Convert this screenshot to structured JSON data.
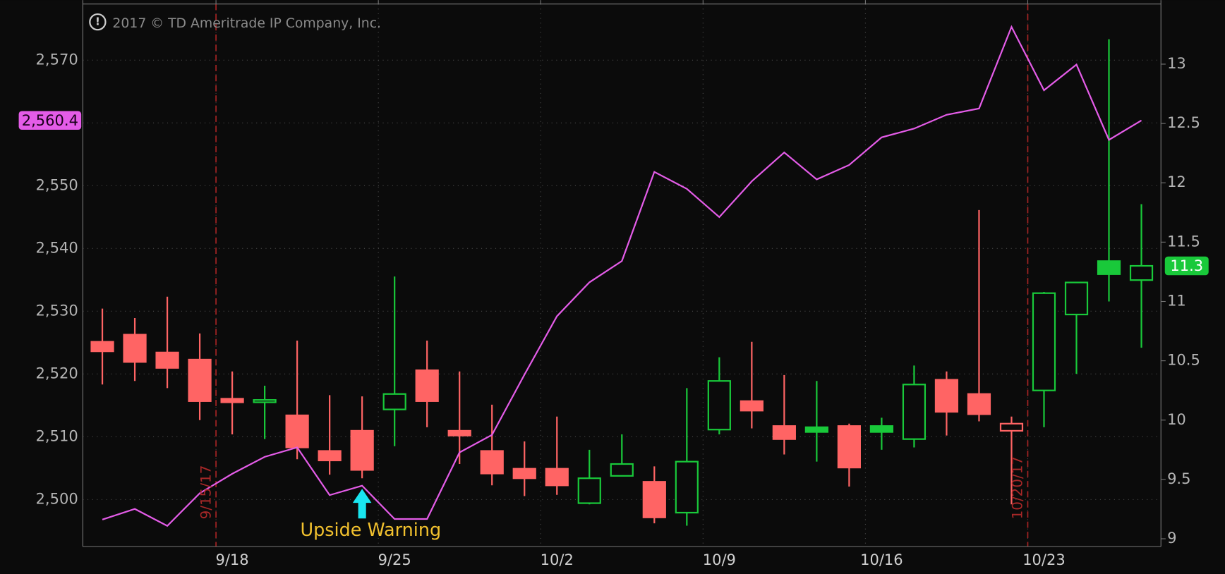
{
  "chart_data": {
    "type": "candlestick",
    "annotations": {
      "copyright": "2017 © TD Ameritrade IP Company, Inc.",
      "signal": {
        "text": "Upside Warning",
        "index": 8
      }
    },
    "event_lines": [
      {
        "label": "9/15/17",
        "index": 3
      },
      {
        "label": "10/20/17",
        "index": 28
      }
    ],
    "categories": [
      null,
      null,
      null,
      null,
      "9/18",
      null,
      null,
      null,
      null,
      "9/25",
      null,
      null,
      null,
      null,
      "10/2",
      null,
      null,
      null,
      null,
      "10/9",
      null,
      null,
      null,
      null,
      "10/16",
      null,
      null,
      null,
      null,
      "10/23",
      null,
      null,
      null
    ],
    "ylim": [
      2492.5,
      2578.95
    ],
    "yticks": [
      {
        "value": 2500,
        "label": "2,500"
      },
      {
        "value": 2510,
        "label": "2,510"
      },
      {
        "value": 2520,
        "label": "2,520"
      },
      {
        "value": 2530,
        "label": "2,530"
      },
      {
        "value": 2540,
        "label": "2,540"
      },
      {
        "value": 2550,
        "label": "2,550"
      },
      {
        "value": 2560,
        "label": "2,560"
      },
      {
        "value": 2570,
        "label": "2,570"
      }
    ],
    "y2lim": [
      8.934,
      13.507
    ],
    "y2ticks": [
      9,
      9.5,
      10,
      10.5,
      11,
      11.5,
      12,
      12.5,
      13
    ],
    "grid": true,
    "series": [
      {
        "type": "candlestick",
        "axis": "y2",
        "up_color": "#19c93a",
        "down_color": "#ff6464",
        "last_value_label": "11.3",
        "open": [
          10.66,
          10.72,
          10.57,
          10.51,
          10.18,
          10.16,
          10.04,
          9.74,
          9.91,
          10.09,
          10.42,
          9.91,
          9.74,
          9.59,
          9.59,
          9.3,
          9.53,
          9.48,
          9.22,
          9.92,
          10.16,
          9.95,
          9.94,
          9.95,
          9.95,
          9.84,
          10.34,
          10.22,
          9.91,
          10.25,
          10.89,
          11.34,
          11.18
        ],
        "high": [
          10.94,
          10.86,
          11.04,
          10.73,
          10.41,
          10.29,
          10.67,
          10.21,
          10.2,
          11.21,
          10.67,
          10.41,
          10.13,
          9.82,
          10.03,
          9.75,
          9.88,
          9.61,
          10.27,
          10.53,
          10.66,
          10.38,
          10.33,
          9.97,
          10.02,
          10.46,
          10.41,
          11.77,
          10.03,
          11.08,
          11.16,
          13.21,
          11.82
        ],
        "low": [
          10.3,
          10.33,
          10.27,
          10.0,
          9.88,
          9.84,
          9.67,
          9.54,
          9.51,
          9.78,
          9.94,
          9.63,
          9.45,
          9.36,
          9.37,
          9.29,
          9.53,
          9.13,
          9.11,
          9.88,
          9.93,
          9.71,
          9.65,
          9.44,
          9.75,
          9.77,
          9.87,
          9.99,
          9.29,
          9.94,
          10.39,
          11.0,
          10.61
        ],
        "close": [
          10.58,
          10.49,
          10.44,
          10.16,
          10.15,
          10.17,
          9.77,
          9.66,
          9.58,
          10.22,
          10.16,
          9.87,
          9.55,
          9.51,
          9.45,
          9.51,
          9.63,
          9.18,
          9.65,
          10.33,
          10.08,
          9.84,
          9.9,
          9.6,
          9.9,
          10.3,
          10.07,
          10.05,
          9.97,
          11.07,
          11.16,
          11.23,
          11.3
        ]
      },
      {
        "type": "line",
        "color": "#e45ce8",
        "last_value_label": "2,560.4",
        "values": [
          2496.8,
          2498.5,
          2495.8,
          2501.0,
          2504.1,
          2506.8,
          2508.3,
          2500.7,
          2502.2,
          2496.9,
          2496.9,
          2507.5,
          2510.3,
          2519.9,
          2529.2,
          2534.6,
          2538.0,
          2552.2,
          2549.5,
          2545.0,
          2550.7,
          2555.3,
          2551.0,
          2553.3,
          2557.7,
          2559.1,
          2561.3,
          2562.3,
          2575.3,
          2565.2,
          2569.3,
          2557.3,
          2560.4
        ]
      }
    ]
  }
}
